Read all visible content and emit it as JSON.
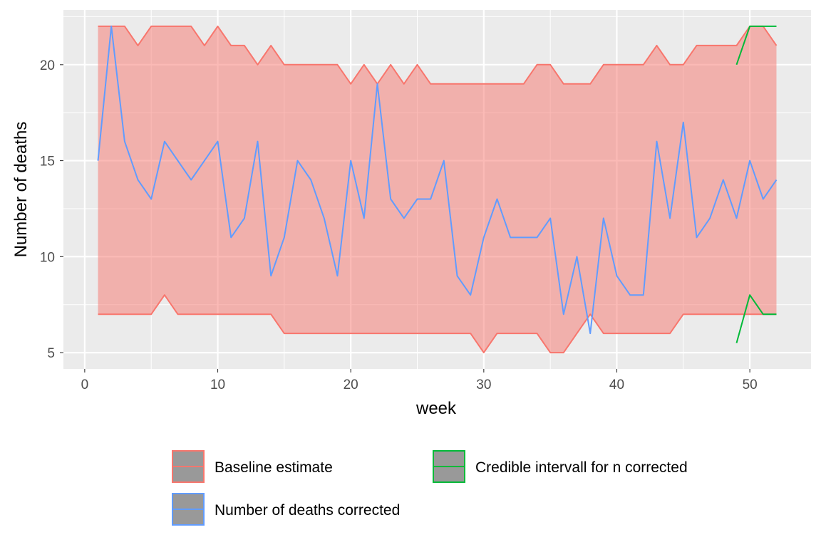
{
  "chart_data": {
    "type": "line",
    "title": "",
    "xlabel": "week",
    "ylabel": "Number of deaths",
    "xlim": [
      -1.6,
      54.6
    ],
    "ylim": [
      4.15,
      22.85
    ],
    "x_ticks": [
      0,
      10,
      20,
      30,
      40,
      50
    ],
    "x_tick_labels": [
      "0",
      "10",
      "20",
      "30",
      "40",
      "50"
    ],
    "y_ticks": [
      5,
      10,
      15,
      20
    ],
    "y_tick_labels": [
      "5",
      "10",
      "15",
      "20"
    ],
    "grid": true,
    "legend_position": "bottom",
    "panel_background": "#ebebeb",
    "series": [
      {
        "name": "Baseline estimate",
        "kind": "ribbon",
        "color": "#f8766d",
        "fill": "#f8766d",
        "x": [
          1,
          2,
          3,
          4,
          5,
          6,
          7,
          8,
          9,
          10,
          11,
          12,
          13,
          14,
          15,
          16,
          17,
          18,
          19,
          20,
          21,
          22,
          23,
          24,
          25,
          26,
          27,
          28,
          29,
          30,
          31,
          32,
          33,
          34,
          35,
          36,
          37,
          38,
          39,
          40,
          41,
          42,
          43,
          44,
          45,
          46,
          47,
          48,
          49,
          50,
          51,
          52
        ],
        "upper": [
          22,
          22,
          22,
          21,
          22,
          22,
          22,
          22,
          21,
          22,
          21,
          21,
          20,
          21,
          20,
          20,
          20,
          20,
          20,
          19,
          20,
          19,
          20,
          19,
          20,
          19,
          19,
          19,
          19,
          19,
          19,
          19,
          19,
          20,
          20,
          19,
          19,
          19,
          20,
          20,
          20,
          20,
          21,
          20,
          20,
          21,
          21,
          21,
          21,
          22,
          22,
          21
        ],
        "lower": [
          7,
          7,
          7,
          7,
          7,
          8,
          7,
          7,
          7,
          7,
          7,
          7,
          7,
          7,
          6,
          6,
          6,
          6,
          6,
          6,
          6,
          6,
          6,
          6,
          6,
          6,
          6,
          6,
          6,
          5,
          6,
          6,
          6,
          6,
          5,
          5,
          6,
          7,
          6,
          6,
          6,
          6,
          6,
          6,
          7,
          7,
          7,
          7,
          7,
          7,
          7,
          7
        ]
      },
      {
        "name": "Number of deaths corrected",
        "kind": "line",
        "color": "#619cff",
        "x": [
          1,
          2,
          3,
          4,
          5,
          6,
          7,
          8,
          9,
          10,
          11,
          12,
          13,
          14,
          15,
          16,
          17,
          18,
          19,
          20,
          21,
          22,
          23,
          24,
          25,
          26,
          27,
          28,
          29,
          30,
          31,
          32,
          33,
          34,
          35,
          36,
          37,
          38,
          39,
          40,
          41,
          42,
          43,
          44,
          45,
          46,
          47,
          48,
          49,
          50,
          51,
          52
        ],
        "values": [
          15,
          22,
          16,
          14,
          13,
          16,
          15,
          14,
          15,
          16,
          11,
          12,
          16,
          9,
          11,
          15,
          14,
          12,
          9,
          15,
          12,
          19,
          13,
          12,
          13,
          13,
          15,
          9,
          8,
          11,
          13,
          11,
          11,
          11,
          12,
          7,
          10,
          6,
          12,
          9,
          8,
          8,
          16,
          12,
          17,
          11,
          12,
          14,
          12,
          15,
          13,
          14
        ]
      },
      {
        "name": "Credible intervall for n corrected",
        "kind": "interval",
        "color": "#00ba38",
        "x": [
          49,
          50,
          51,
          52
        ],
        "upper": [
          20,
          22,
          22,
          22
        ],
        "lower": [
          5.5,
          8,
          7,
          7
        ]
      }
    ]
  }
}
